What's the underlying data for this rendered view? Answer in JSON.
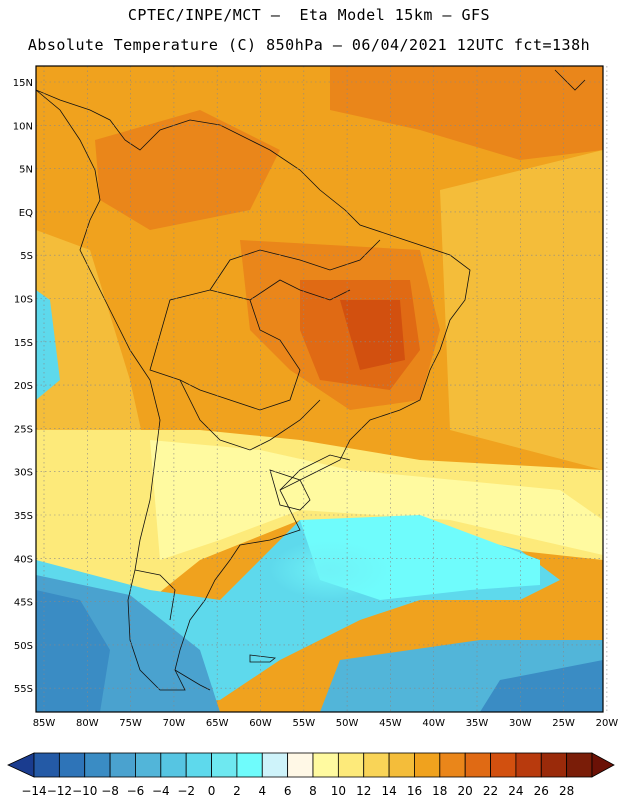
{
  "header": {
    "line1": "CPTEC/INPE/MCT –  Eta Model 15km – GFS",
    "line2": "Absolute Temperature (C) 850hPa – 06/04/2021 12UTC fct=138h"
  },
  "axes": {
    "lat_labels": [
      "15N",
      "10N",
      "5N",
      "EQ",
      "5S",
      "10S",
      "15S",
      "20S",
      "25S",
      "30S",
      "35S",
      "40S",
      "45S",
      "50S",
      "55S"
    ],
    "lon_labels": [
      "85W",
      "80W",
      "75W",
      "70W",
      "65W",
      "60W",
      "55W",
      "50W",
      "45W",
      "40W",
      "35W",
      "30W",
      "25W",
      "20W"
    ]
  },
  "colorbar": {
    "labels": [
      "-14",
      "-12",
      "-10",
      "-8",
      "-6",
      "-4",
      "-2",
      "0",
      "2",
      "4",
      "6",
      "8",
      "10",
      "12",
      "14",
      "16",
      "18",
      "20",
      "22",
      "24",
      "26",
      "28"
    ],
    "colors": [
      "#1a3c8f",
      "#245aa6",
      "#2e74b8",
      "#3a8cc4",
      "#4aa2cf",
      "#52b5d9",
      "#56c5e2",
      "#5ed9ec",
      "#6ee8f0",
      "#6ffcfc",
      "#cef3fa",
      "#fff8e6",
      "#fffaa0",
      "#fdea7a",
      "#f9d457",
      "#f4bd3a",
      "#f0a21e",
      "#ea861a",
      "#e06a14",
      "#d2500f",
      "#b83a0d",
      "#9a2a0a",
      "#7a1d08",
      "#6b1106"
    ]
  }
}
